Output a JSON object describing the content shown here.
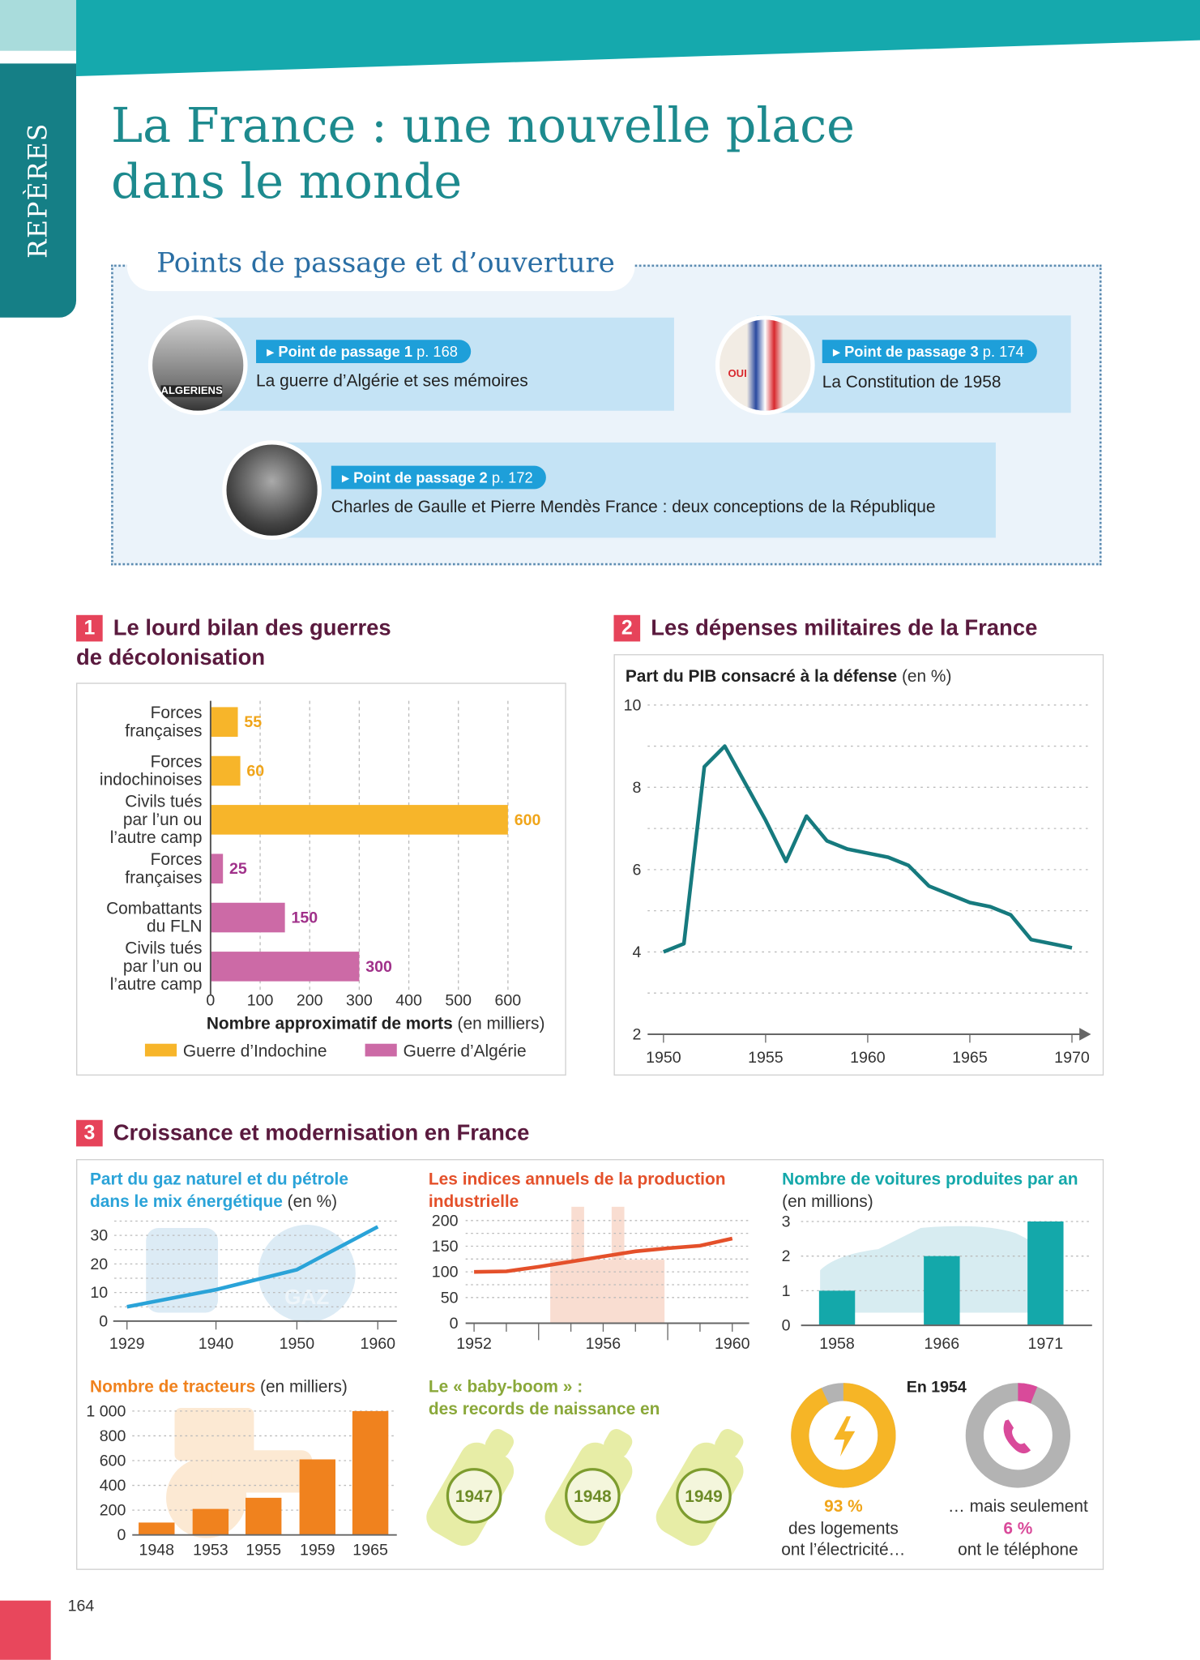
{
  "side_tab": {
    "label": "REPÈRES"
  },
  "title": {
    "line1": "La France : une nouvelle place",
    "line2": "dans le monde"
  },
  "points_de_passage": {
    "heading": "Points de passage et d’ouverture",
    "items": [
      {
        "label": "Point de passage 1",
        "page": "p. 168",
        "text": "La guerre d’Algérie et ses mémoires",
        "photo_caption": "ALGERIENS"
      },
      {
        "label": "Point de passage 2",
        "page": "p. 172",
        "text": "Charles de Gaulle et Pierre Mendès France : deux conceptions de la République"
      },
      {
        "label": "Point de passage 3",
        "page": "p. 174",
        "text": "La Constitution de 1958",
        "photo_caption": "OUI"
      }
    ]
  },
  "doc1": {
    "number": "1",
    "title_line1": "Le lourd bilan des guerres",
    "title_line2": "de décolonisation"
  },
  "doc2": {
    "number": "2",
    "title": "Les dépenses militaires de la France"
  },
  "doc3": {
    "number": "3",
    "title": "Croissance et modernisation en France"
  },
  "colors": {
    "teal": "#157f86",
    "indochine": "#f7b52a",
    "algerie": "#cc6aa6",
    "defense_line": "#167a7e",
    "gas": "#2aa3d8",
    "industry": "#e4502a",
    "cars": "#14a8aa",
    "tractors": "#f0821e",
    "babyboom": "#7d9c2e",
    "electricity": "#f6b526",
    "telephone": "#d94a9a"
  },
  "chart_data": [
    {
      "id": "deaths",
      "type": "bar",
      "orientation": "horizontal",
      "categories": [
        "Forces\nfrançaises",
        "Forces\nindochinoises",
        "Civils tués\npar l’un ou\nl’autre camp",
        "Forces\nfrançaises",
        "Combattants\ndu FLN",
        "Civils tués\npar l’un ou\nl’autre camp"
      ],
      "values": [
        55,
        60,
        600,
        25,
        150,
        300
      ],
      "series_of_each": [
        "Guerre d’Indochine",
        "Guerre d’Indochine",
        "Guerre d’Indochine",
        "Guerre d’Algérie",
        "Guerre d’Algérie",
        "Guerre d’Algérie"
      ],
      "legend": [
        "Guerre d’Indochine",
        "Guerre d’Algérie"
      ],
      "legend_placement": "bottom",
      "xlabel_bold": "Nombre approximatif de morts",
      "xlabel_unit": " (en milliers)",
      "xlim": [
        0,
        600
      ],
      "xticks": [
        0,
        100,
        200,
        300,
        400,
        500,
        600
      ],
      "grid": "vertical dashed"
    },
    {
      "id": "defense",
      "type": "line",
      "title_bold": "Part du PIB consacré à la défense",
      "title_unit": " (en %)",
      "x": [
        1950,
        1951,
        1952,
        1953,
        1954,
        1955,
        1956,
        1957,
        1958,
        1959,
        1960,
        1961,
        1962,
        1963,
        1964,
        1965,
        1966,
        1967,
        1968,
        1969,
        1970
      ],
      "y": [
        4.0,
        4.2,
        8.5,
        9.0,
        8.1,
        7.2,
        6.2,
        7.3,
        6.7,
        6.5,
        6.4,
        6.3,
        6.1,
        5.6,
        5.4,
        5.2,
        5.1,
        4.9,
        4.3,
        4.2,
        4.1
      ],
      "ylim": [
        2,
        10
      ],
      "yticks": [
        2,
        4,
        6,
        8,
        10
      ],
      "xticks": [
        1950,
        1955,
        1960,
        1965,
        1970
      ],
      "grid": "horizontal dotted"
    },
    {
      "id": "energy",
      "type": "line",
      "title_line1": "Part du gaz naturel et du pétrole",
      "title_line2_bold": "dans le mix énergétique",
      "title_unit": " (en %)",
      "x": [
        1929,
        1940,
        1950,
        1960
      ],
      "y": [
        5,
        11,
        18,
        33
      ],
      "ylim": [
        0,
        35
      ],
      "yticks": [
        0,
        10,
        20,
        30
      ],
      "xticks": [
        1929,
        1940,
        1950,
        1960
      ],
      "background_label": "GAZ"
    },
    {
      "id": "industry",
      "type": "line",
      "title_line1": "Les indices annuels de la production",
      "title_line2": "industrielle",
      "x": [
        1952,
        1953,
        1954,
        1955,
        1956,
        1957,
        1958,
        1959,
        1960
      ],
      "y": [
        100,
        101,
        110,
        120,
        130,
        140,
        146,
        151,
        165
      ],
      "ylim": [
        0,
        200
      ],
      "yticks": [
        0,
        50,
        100,
        150,
        200
      ],
      "xticks": [
        1952,
        1956,
        1960
      ]
    },
    {
      "id": "cars",
      "type": "bar",
      "title": "Nombre de voitures produites par an",
      "title_unit": "(en millions)",
      "categories": [
        "1958",
        "1966",
        "1971"
      ],
      "values": [
        1,
        2,
        3
      ],
      "ylim": [
        0,
        3
      ],
      "yticks": [
        0,
        1,
        2,
        3
      ]
    },
    {
      "id": "tractors",
      "type": "bar",
      "title_bold": "Nombre de tracteurs",
      "title_unit": " (en milliers)",
      "categories": [
        "1948",
        "1953",
        "1955",
        "1959",
        "1965"
      ],
      "values": [
        100,
        210,
        300,
        610,
        1000
      ],
      "ylim": [
        0,
        1000
      ],
      "yticks": [
        "0",
        "200",
        "400",
        "600",
        "800",
        "1 000"
      ]
    },
    {
      "id": "equipment",
      "type": "pie",
      "heading": "En 1954",
      "slices": [
        {
          "value": 93,
          "pct_label": "93 %",
          "text_line1": "des logements",
          "text_line2": "ont l’électricité…",
          "icon": "lightning-icon"
        },
        {
          "value": 6,
          "pct_label": "6 %",
          "text_before": "… mais seulement",
          "text_line2": "ont le téléphone",
          "icon": "telephone-icon"
        }
      ]
    }
  ],
  "babyboom": {
    "title_line1": "Le « baby-boom » :",
    "title_line2": "des records de naissance en",
    "years": [
      "1947",
      "1948",
      "1949"
    ]
  },
  "footer": {
    "page_number": "164"
  }
}
